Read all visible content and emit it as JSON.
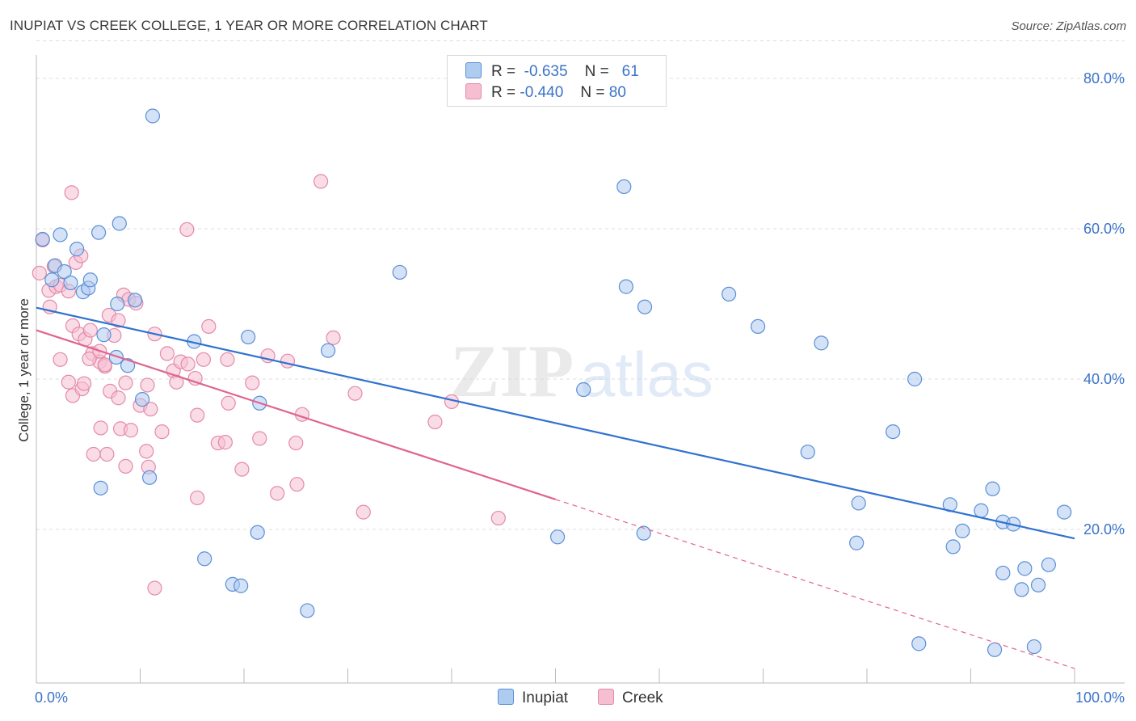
{
  "header": {
    "title": "INUPIAT VS CREEK COLLEGE, 1 YEAR OR MORE CORRELATION CHART",
    "source": "Source: ZipAtlas.com"
  },
  "legend": {
    "rows": [
      {
        "r_label": "R =",
        "r_value": "-0.635",
        "n_label": "N =",
        "n_value": "61"
      },
      {
        "r_label": "R =",
        "r_value": "-0.440",
        "n_label": "N =",
        "n_value": "80"
      }
    ]
  },
  "watermark": {
    "zip": "ZIP",
    "atlas": "atlas"
  },
  "colors": {
    "inupiat_fill": "#aecbf0",
    "inupiat_stroke": "#5b8fd6",
    "inupiat_line": "#2f72d0",
    "creek_fill": "#f6bfd1",
    "creek_stroke": "#e48aaa",
    "creek_line": "#e0648f",
    "tick_text": "#3b74c8",
    "grid": "#dddddd"
  },
  "chart_data": {
    "type": "scatter",
    "title": "INUPIAT VS CREEK COLLEGE, 1 YEAR OR MORE CORRELATION CHART",
    "xlabel": "",
    "ylabel": "College, 1 year or more",
    "xlim": [
      0,
      100
    ],
    "ylim": [
      0,
      85
    ],
    "x_tick_labels": [
      "0.0%",
      "100.0%"
    ],
    "y_ticks": [
      20,
      40,
      60,
      80
    ],
    "y_tick_labels": [
      "20.0%",
      "40.0%",
      "60.0%",
      "80.0%"
    ],
    "grid": true,
    "legend_position": "top-center",
    "series": [
      {
        "name": "Inupiat",
        "r": -0.635,
        "n": 61,
        "trend": {
          "x": [
            0,
            100
          ],
          "y": [
            49.5,
            18.8
          ]
        },
        "points": [
          [
            0.6,
            58.6
          ],
          [
            2.3,
            59.2
          ],
          [
            3.9,
            57.3
          ],
          [
            6.0,
            59.5
          ],
          [
            8.0,
            60.7
          ],
          [
            1.5,
            53.2
          ],
          [
            1.8,
            55.1
          ],
          [
            2.7,
            54.3
          ],
          [
            3.3,
            52.8
          ],
          [
            4.5,
            51.6
          ],
          [
            5.0,
            52.1
          ],
          [
            5.2,
            53.2
          ],
          [
            7.8,
            50.0
          ],
          [
            9.5,
            50.5
          ],
          [
            6.5,
            45.9
          ],
          [
            7.7,
            42.9
          ],
          [
            8.8,
            41.8
          ],
          [
            10.2,
            37.3
          ],
          [
            10.9,
            26.9
          ],
          [
            6.2,
            25.5
          ],
          [
            11.2,
            75.0
          ],
          [
            15.2,
            45.0
          ],
          [
            16.2,
            16.1
          ],
          [
            18.9,
            12.7
          ],
          [
            19.7,
            12.5
          ],
          [
            20.4,
            45.6
          ],
          [
            21.3,
            19.6
          ],
          [
            21.5,
            36.8
          ],
          [
            26.1,
            9.2
          ],
          [
            28.1,
            43.8
          ],
          [
            35.0,
            54.2
          ],
          [
            50.2,
            19.0
          ],
          [
            52.7,
            38.6
          ],
          [
            56.6,
            65.6
          ],
          [
            56.8,
            52.3
          ],
          [
            58.6,
            49.6
          ],
          [
            66.7,
            51.3
          ],
          [
            69.5,
            47.0
          ],
          [
            74.3,
            30.3
          ],
          [
            75.6,
            44.8
          ],
          [
            79.2,
            23.5
          ],
          [
            79.0,
            18.2
          ],
          [
            82.5,
            33.0
          ],
          [
            84.6,
            40.0
          ],
          [
            85.0,
            4.8
          ],
          [
            88.0,
            23.3
          ],
          [
            88.3,
            17.7
          ],
          [
            89.2,
            19.8
          ],
          [
            91.0,
            22.5
          ],
          [
            92.1,
            25.4
          ],
          [
            92.3,
            4.0
          ],
          [
            93.1,
            21.0
          ],
          [
            94.1,
            20.7
          ],
          [
            93.1,
            14.2
          ],
          [
            94.9,
            12.0
          ],
          [
            95.2,
            14.8
          ],
          [
            96.1,
            4.4
          ],
          [
            96.5,
            12.6
          ],
          [
            97.5,
            15.3
          ],
          [
            99.0,
            22.3
          ],
          [
            58.5,
            19.5
          ]
        ]
      },
      {
        "name": "Creek",
        "r": -0.44,
        "n": 80,
        "trend": {
          "x": [
            0,
            50
          ],
          "y": [
            46.5,
            24.0
          ],
          "dashed_to": {
            "x": 100,
            "y": 1.5
          }
        },
        "points": [
          [
            0.3,
            54.1
          ],
          [
            0.6,
            58.5
          ],
          [
            1.2,
            51.8
          ],
          [
            1.7,
            55.0
          ],
          [
            1.9,
            52.3
          ],
          [
            2.3,
            52.5
          ],
          [
            3.1,
            51.7
          ],
          [
            3.4,
            64.8
          ],
          [
            3.8,
            55.5
          ],
          [
            4.3,
            56.4
          ],
          [
            1.3,
            49.6
          ],
          [
            3.5,
            47.1
          ],
          [
            4.1,
            46.0
          ],
          [
            4.7,
            45.3
          ],
          [
            5.2,
            46.5
          ],
          [
            5.4,
            43.4
          ],
          [
            6.1,
            42.3
          ],
          [
            6.6,
            41.7
          ],
          [
            7.0,
            48.5
          ],
          [
            7.5,
            45.8
          ],
          [
            7.9,
            47.8
          ],
          [
            8.4,
            51.2
          ],
          [
            8.9,
            50.6
          ],
          [
            9.6,
            50.1
          ],
          [
            2.3,
            42.6
          ],
          [
            3.1,
            39.6
          ],
          [
            3.5,
            37.8
          ],
          [
            4.4,
            38.7
          ],
          [
            4.6,
            39.4
          ],
          [
            5.1,
            42.7
          ],
          [
            6.1,
            43.7
          ],
          [
            6.6,
            41.9
          ],
          [
            7.1,
            38.4
          ],
          [
            7.9,
            37.5
          ],
          [
            8.6,
            39.5
          ],
          [
            10.0,
            36.5
          ],
          [
            10.7,
            39.2
          ],
          [
            11.4,
            46.0
          ],
          [
            12.6,
            43.4
          ],
          [
            13.2,
            41.1
          ],
          [
            13.9,
            42.3
          ],
          [
            14.6,
            42.0
          ],
          [
            15.3,
            40.1
          ],
          [
            16.1,
            42.6
          ],
          [
            16.6,
            47.0
          ],
          [
            18.4,
            42.6
          ],
          [
            19.8,
            28.0
          ],
          [
            21.5,
            32.1
          ],
          [
            22.3,
            43.1
          ],
          [
            23.2,
            24.8
          ],
          [
            24.2,
            42.4
          ],
          [
            25.1,
            26.0
          ],
          [
            25.6,
            35.3
          ],
          [
            25.0,
            31.5
          ],
          [
            27.4,
            66.3
          ],
          [
            28.6,
            45.5
          ],
          [
            30.7,
            38.1
          ],
          [
            31.5,
            22.3
          ],
          [
            38.4,
            34.3
          ],
          [
            40.0,
            37.0
          ],
          [
            44.5,
            21.5
          ],
          [
            14.5,
            59.9
          ],
          [
            10.6,
            30.4
          ],
          [
            10.8,
            28.3
          ],
          [
            12.1,
            33.0
          ],
          [
            13.5,
            39.6
          ],
          [
            15.5,
            35.2
          ],
          [
            17.5,
            31.5
          ],
          [
            18.2,
            31.6
          ],
          [
            18.5,
            36.8
          ],
          [
            6.2,
            33.5
          ],
          [
            6.8,
            30.0
          ],
          [
            8.1,
            33.4
          ],
          [
            8.6,
            28.4
          ],
          [
            9.1,
            33.2
          ],
          [
            11.0,
            36.0
          ],
          [
            11.4,
            12.2
          ],
          [
            15.5,
            24.2
          ],
          [
            5.5,
            30.0
          ],
          [
            20.8,
            39.5
          ]
        ]
      }
    ]
  }
}
